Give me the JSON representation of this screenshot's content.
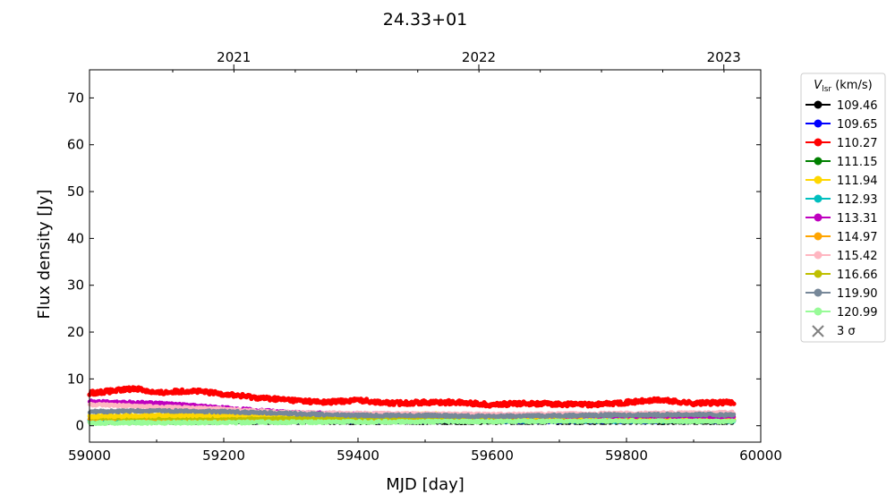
{
  "chart_data": {
    "type": "scatter",
    "title": "24.33+01",
    "xlabel": "MJD [day]",
    "ylabel": "Flux density [Jy]",
    "xlim": [
      59000,
      60000
    ],
    "ylim": [
      -3.5,
      76
    ],
    "x_ticks": [
      "59000",
      "59200",
      "59400",
      "59600",
      "59800",
      "60000"
    ],
    "y_ticks": [
      "0",
      "10",
      "20",
      "30",
      "40",
      "50",
      "60",
      "70"
    ],
    "top_axis_ticks": [
      {
        "label": "2021",
        "mjd": 59215
      },
      {
        "label": "2022",
        "mjd": 59580
      },
      {
        "label": "2023",
        "mjd": 59945
      }
    ],
    "legend": {
      "title_main": "V",
      "title_sub": "lsr",
      "title_unit": " (km/s)",
      "placement": "outside-right",
      "sigma_label": "3 σ",
      "sigma_color": "#808080"
    },
    "x_range_observed": [
      59000,
      59960
    ],
    "series": [
      {
        "name": "109.46",
        "color": "#000000",
        "x": [
          59000,
          59960
        ],
        "y": [
          0.8,
          0.8
        ]
      },
      {
        "name": "109.65",
        "color": "#0000ff",
        "x": [
          59000,
          59960
        ],
        "y": [
          1.0,
          1.0
        ]
      },
      {
        "name": "110.27",
        "color": "#ff0000",
        "x": [
          59000,
          59040,
          59070,
          59100,
          59150,
          59200,
          59250,
          59300,
          59350,
          59400,
          59450,
          59500,
          59550,
          59600,
          59650,
          59700,
          59750,
          59800,
          59850,
          59900,
          59960
        ],
        "y": [
          7.0,
          7.5,
          8.0,
          7.0,
          7.5,
          6.8,
          6.0,
          5.5,
          5.0,
          5.5,
          4.8,
          5.0,
          5.0,
          4.5,
          4.8,
          4.6,
          4.5,
          5.0,
          5.5,
          4.8,
          5.0
        ]
      },
      {
        "name": "111.15",
        "color": "#008000",
        "x": [
          59000,
          59960
        ],
        "y": [
          1.4,
          1.1
        ]
      },
      {
        "name": "111.94",
        "color": "#ffd700",
        "x": [
          59000,
          59100,
          59200,
          59300,
          59400,
          59500,
          59600,
          59700,
          59800,
          59900,
          59960
        ],
        "y": [
          2.0,
          2.2,
          2.3,
          2.6,
          2.4,
          2.5,
          2.1,
          2.0,
          2.0,
          1.9,
          1.8
        ]
      },
      {
        "name": "112.93",
        "color": "#00bfbf",
        "x": [
          59000,
          59960
        ],
        "y": [
          1.2,
          1.0
        ]
      },
      {
        "name": "113.31",
        "color": "#bf00bf",
        "x": [
          59000,
          59100,
          59200,
          59300,
          59400,
          59600,
          59800,
          59960
        ],
        "y": [
          5.2,
          4.8,
          3.8,
          2.8,
          2.4,
          2.2,
          2.1,
          2.0
        ]
      },
      {
        "name": "114.97",
        "color": "#ffa500",
        "x": [
          59000,
          59960
        ],
        "y": [
          1.6,
          1.3
        ]
      },
      {
        "name": "115.42",
        "color": "#ffb6c1",
        "x": [
          59000,
          59100,
          59200,
          59300,
          59400,
          59600,
          59800,
          59960
        ],
        "y": [
          4.5,
          4.0,
          3.5,
          2.8,
          2.6,
          2.4,
          2.6,
          2.8
        ]
      },
      {
        "name": "116.66",
        "color": "#bfbf00",
        "x": [
          59000,
          59960
        ],
        "y": [
          1.8,
          1.5
        ]
      },
      {
        "name": "119.90",
        "color": "#778899",
        "x": [
          59000,
          59100,
          59200,
          59300,
          59400,
          59500,
          59600,
          59700,
          59800,
          59900,
          59960
        ],
        "y": [
          3.0,
          3.2,
          3.0,
          2.6,
          2.2,
          2.2,
          2.0,
          2.2,
          2.3,
          2.4,
          2.3
        ]
      },
      {
        "name": "120.99",
        "color": "#98fb98",
        "x": [
          59000,
          59200,
          59400,
          59600,
          59800,
          59960
        ],
        "y": [
          0.6,
          0.7,
          0.8,
          0.9,
          1.0,
          0.9
        ]
      }
    ]
  }
}
